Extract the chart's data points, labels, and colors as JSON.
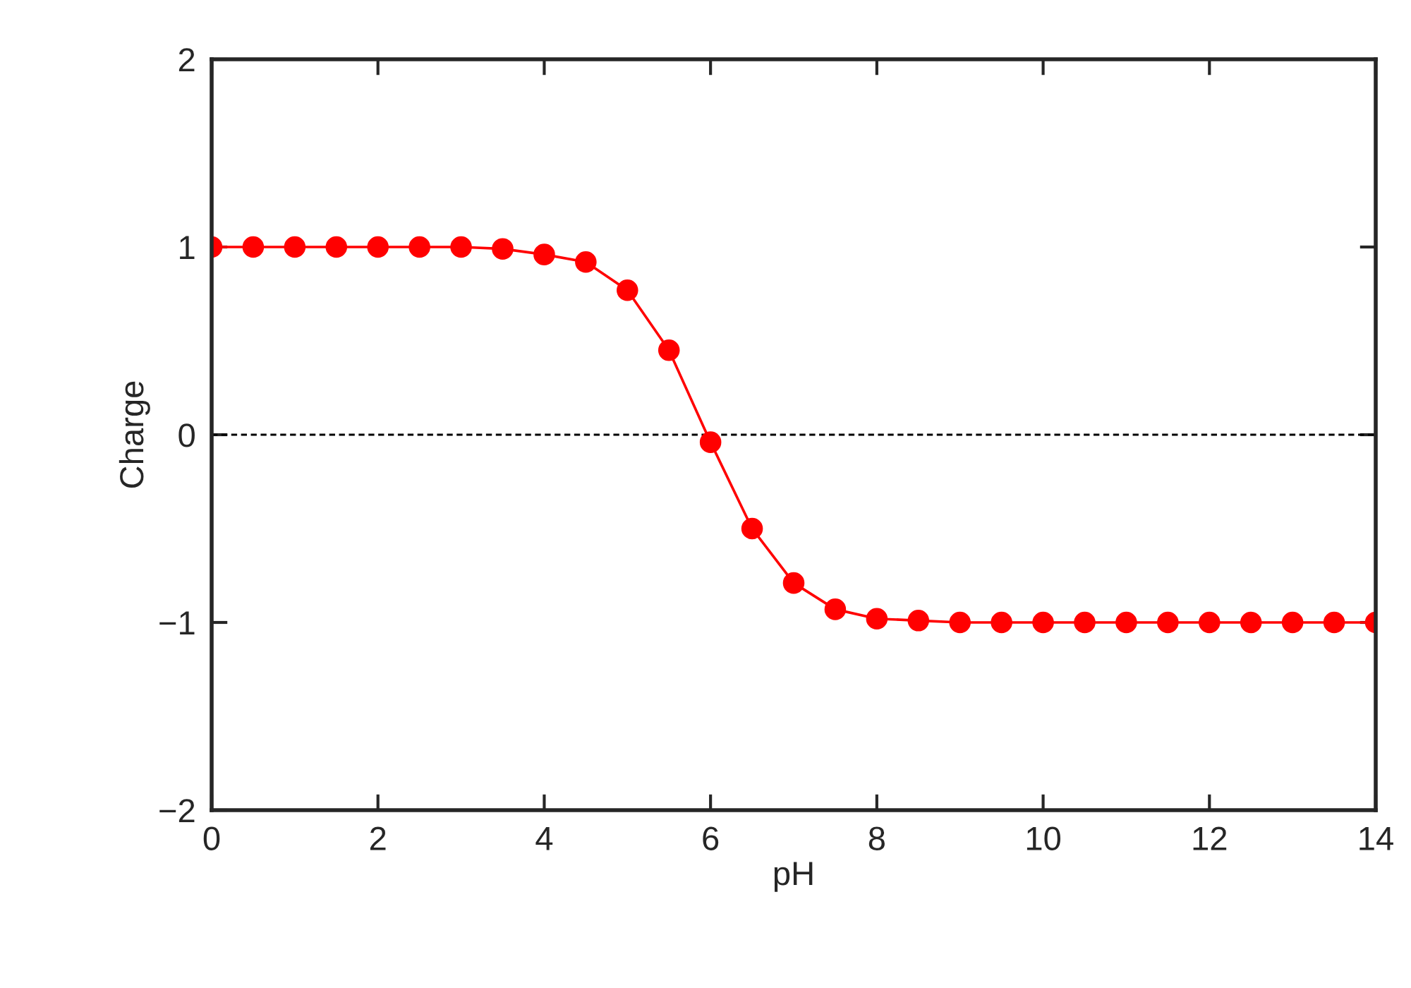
{
  "chart_data": {
    "type": "line",
    "xlabel": "pH",
    "ylabel": "Charge",
    "x": [
      0,
      0.5,
      1,
      1.5,
      2,
      2.5,
      3,
      3.5,
      4,
      4.5,
      5,
      5.5,
      6,
      6.5,
      7,
      7.5,
      8,
      8.5,
      9,
      9.5,
      10,
      10.5,
      11,
      11.5,
      12,
      12.5,
      13,
      13.5,
      14
    ],
    "series": [
      {
        "color": "#ff0000",
        "values": [
          1,
          1,
          1,
          1,
          1,
          1,
          1,
          0.99,
          0.96,
          0.92,
          0.77,
          0.45,
          -0.04,
          -0.5,
          -0.79,
          -0.93,
          -0.98,
          -0.99,
          -1,
          -1,
          -1,
          -1,
          -1,
          -1,
          -1,
          -1,
          -1,
          -1,
          -1
        ]
      }
    ],
    "xlim": [
      0,
      14
    ],
    "xticks": [
      0,
      2,
      4,
      6,
      8,
      10,
      12,
      14
    ],
    "ylim": [
      -2,
      2
    ],
    "yticks": [
      {
        "value": -2,
        "label": "−2"
      },
      {
        "value": -1,
        "label": "−1"
      },
      0,
      1,
      2
    ],
    "ref_lines": [
      {
        "axis": "y",
        "value": 0,
        "color": "#000000",
        "line_style": "dashed"
      }
    ],
    "marker": "circle",
    "line_style": "solid",
    "grid": false,
    "legend": false
  }
}
